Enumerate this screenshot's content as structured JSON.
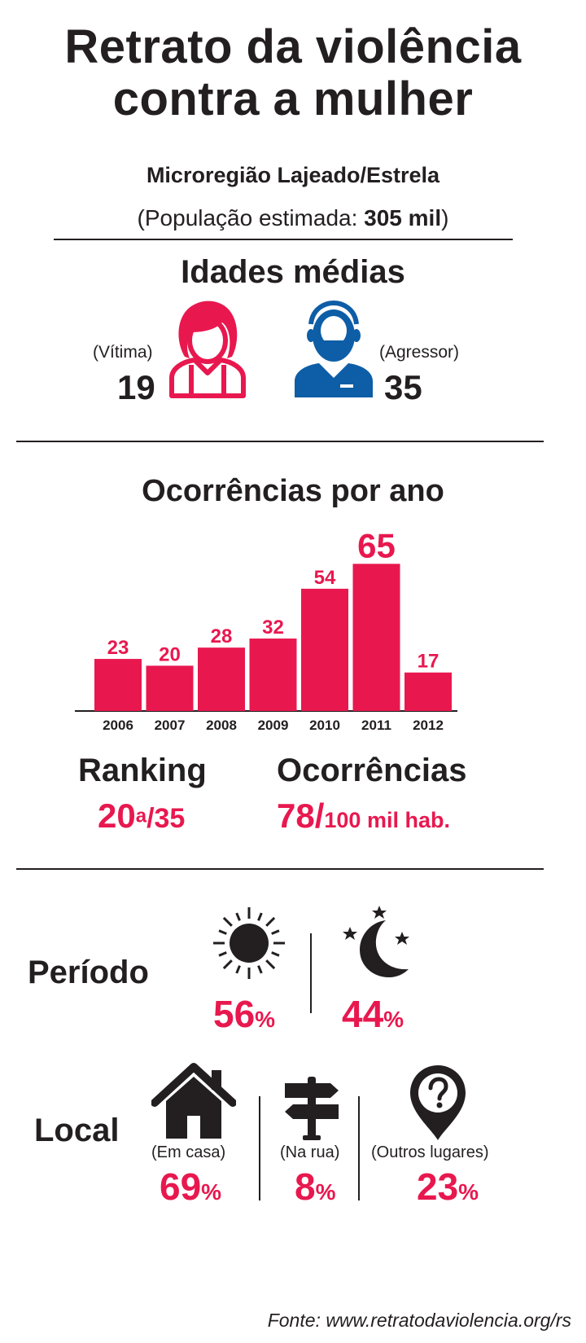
{
  "header": {
    "title_line1": "Retrato da violência",
    "title_line2": "contra a mulher",
    "region": "Microregião Lajeado/Estrela",
    "population_prefix": "(População estimada: ",
    "population_value": "305 mil",
    "population_suffix": ")"
  },
  "ages": {
    "title": "Idades médias",
    "victim_label": "(Vítima)",
    "victim_age": "19",
    "aggressor_label": "(Agressor)",
    "aggressor_age": "35",
    "victim_icon": "woman-icon",
    "aggressor_icon": "man-icon"
  },
  "chart_title": "Ocorrências por ano",
  "chart_data": {
    "type": "bar",
    "categories": [
      "2006",
      "2007",
      "2008",
      "2009",
      "2010",
      "2011",
      "2012"
    ],
    "values": [
      23,
      20,
      28,
      32,
      54,
      65,
      17
    ],
    "title": "Ocorrências por ano",
    "xlabel": "",
    "ylabel": "",
    "highlight_max": true,
    "grid": false,
    "bar_color": "#e8184f"
  },
  "stats": {
    "ranking_label": "Ranking",
    "ranking_value": "20",
    "ranking_sup": "a",
    "ranking_total": "/35",
    "occ_label": "Ocorrências",
    "occ_value": "78/",
    "occ_unit": "100 mil hab."
  },
  "period": {
    "label": "Período",
    "day_pct": "56",
    "night_pct": "44",
    "pct_sign": "%",
    "day_icon": "sun-icon",
    "night_icon": "moon-stars-icon"
  },
  "local": {
    "label": "Local",
    "home_label": "(Em casa)",
    "home_pct": "69",
    "street_label": "(Na rua)",
    "street_pct": "8",
    "other_label": "(Outros lugares)",
    "other_pct": "23",
    "pct_sign": "%",
    "home_icon": "house-icon",
    "street_icon": "signpost-icon",
    "other_icon": "location-question-icon"
  },
  "source": "Fonte: www.retratodaviolencia.org/rs",
  "colors": {
    "accent": "#e8184f",
    "blue": "#0d5ea6",
    "text": "#231f20"
  }
}
